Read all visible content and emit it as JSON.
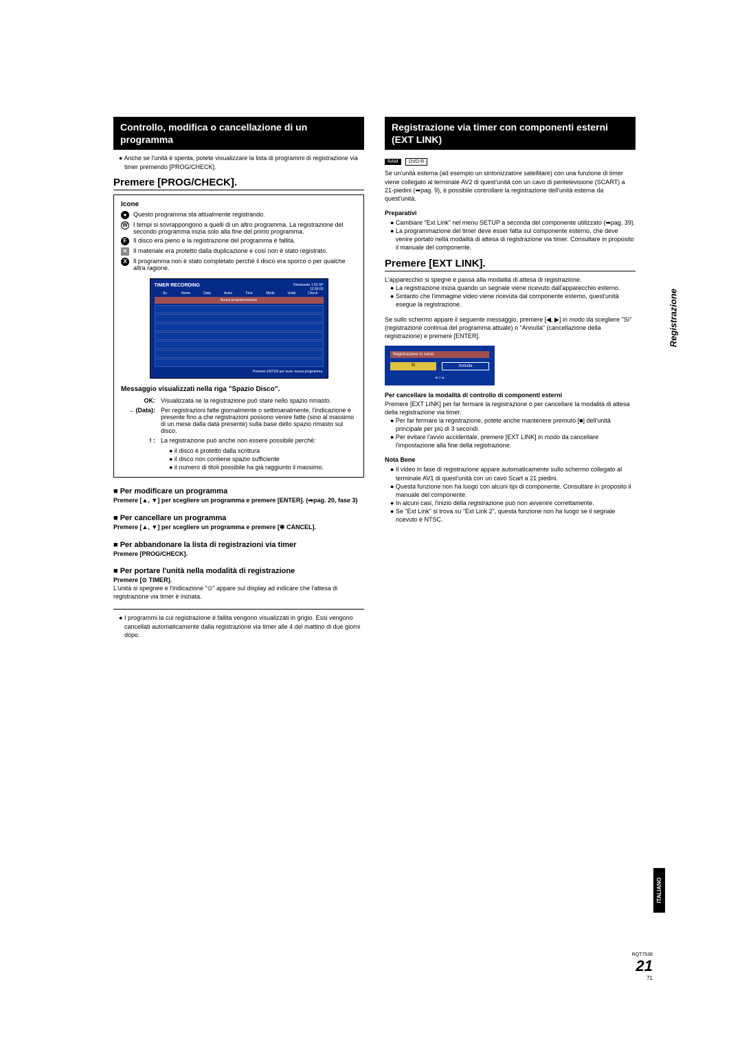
{
  "left": {
    "header": "Controllo, modifica o cancellazione di un programma",
    "intro_bullet": "Anche se l'unità è spenta, potete visualizzare la lista di programmi di registrazione via timer premendo [PROG/CHECK].",
    "subhead": "Premere [PROG/CHECK].",
    "icons_title": "Icone",
    "icons": [
      {
        "glyph": "●",
        "cls": "circle-icon",
        "text": "Questo programma sta attualmente registrando."
      },
      {
        "glyph": "W",
        "cls": "outline-icon",
        "text": "I tempi si sovrappongono a quelli di un altro programma. La registrazione del secondo programma inizia solo alla fine del primo programma."
      },
      {
        "glyph": "F",
        "cls": "circle-icon",
        "text": "Il disco era pieno e la registrazione del programma è fallita."
      },
      {
        "glyph": "✕",
        "cls": "square-icon",
        "text": "Il materiale era protetto dalla duplicazione e così non è stato registrato."
      },
      {
        "glyph": "X",
        "cls": "circle-icon",
        "text": "Il programma non è stato completato perché il disco era sporco o per qualche altra ragione."
      }
    ],
    "timer": {
      "title": "TIMER RECORDING",
      "remain": "Rimanente 1:53 SP",
      "time": "12:56:00",
      "headers": [
        "Su",
        "Nome",
        "Data",
        "Avvio",
        "Fine",
        "Mode",
        "Unità",
        "Check"
      ],
      "newprog": "Nuova programmazione",
      "footer_left": "",
      "footer_right": "Premere ENTER per nuov. nuova programma."
    },
    "msg_title": "Messaggio visualizzati nella riga \"Spazio Disco\".",
    "msgs": [
      {
        "label": "OK:",
        "desc": "Visualizzata se la registrazione può stare nello spazio rimasto."
      },
      {
        "label": "→ (Data):",
        "desc": "Per registrazioni fatte giornalmente o settimanalmente, l'indicazione è presente fino a che registrazioni possono venire fatte (sino al massimo di un mese dalla data presente) sulla base dello spazio rimasto sul disco."
      },
      {
        "label": "! :",
        "desc": "La registrazione può anche non essere possibile perché:"
      }
    ],
    "msg_sub": [
      "il disco è protetto dalla scrittura",
      "il disco non contiene spazio sufficiente",
      "il numero di titoli possibile ha già raggiunto il massimo."
    ],
    "blocks": [
      {
        "title": "Per modificare un programma",
        "instr": "Premere [▲, ▼] per scegliere un programma e premere [ENTER]. (➡pag. 20, fase 3)"
      },
      {
        "title": "Per cancellare un programma",
        "instr": "Premere [▲, ▼] per scegliere un programma e premere [✱ CANCEL]."
      },
      {
        "title": "Per abbandonare la lista di registrazioni via timer",
        "instr": "Premere [PROG/CHECK]."
      },
      {
        "title": "Per portare l'unità nella modalità di registrazione",
        "instr": "Premere [⊙ TIMER]."
      }
    ],
    "unit_off": "L'unità si spegnee e l'indicazione \"⊙\" appare sul display ad indicare che l'attesa di registrazione via timer è iniziata.",
    "foot_bullet": "I programmi la cui registrazione è fallita vengono visualizzati in grigio. Essi vengono cancellati automaticamente dalla registrazione via timer alle 4 del mattino di due giorni dopo."
  },
  "right": {
    "header": "Registrazione via timer con componenti esterni (EXT LINK)",
    "badges": [
      "RAM",
      "DVD-R"
    ],
    "intro": "Se un'unità esterna (ad esempio un sintonizzatore satellitare) con una funzione di timer viene collegato al terminale AV2 di quest'unità con un cavo di peritelevisione (SCART) a 21-piedini (➡pag. 9), è possibile controllare la registrazione dell'unità esterna da quest'unità.",
    "prep_title": "Preparativi",
    "prep": [
      "Cambiare \"Ext Link\" nel menu SETUP a seconda del componente utilizzato (➡pag. 39).",
      "La programmazione del timer deve esser fatta sul componente esterno, che deve venire portato nella modalità di attesa di registrazione via timer. Consultare in proposito il manuale del componente."
    ],
    "subhead": "Premere [EXT LINK].",
    "after": "L'apparecchio si spegne e passa alla modalità di attesa di registrazione.",
    "after_bullets": [
      "La registrazione inizia quando un segnale viene ricevuto dall'apparecchio esterno.",
      "Sintanto che l'immagine video viene ricevuta dal componente esterno, quest'unità esegue la registrazione."
    ],
    "screen_msg": "Se sullo schermo appare il seguente messaggio, premere [◀, ▶] in modo da scegliere \"Sì\" (registrazione continua del programma attuale) o \"Annulla\" (cancellazione della registrazione) e premere [ENTER].",
    "dialog": {
      "title": "Registrazione in corso.",
      "yes": "Sì",
      "cancel": "Annulla"
    },
    "cancel_title": "Per cancellare la modalità di controllo di componenti esterni",
    "cancel_text": "Premere [EXT LINK] per far fermare la registrazione o per cancellare la modalità di attesa della registrazione via timer.",
    "cancel_bullets": [
      "Per far fermare la registrazione, potete anche mantenere premuto [■] dell'unità principale per più di 3 secondi.",
      "Per evitare l'avvio accidentale, premere [EXT LINK] in modo da cancellare l'impostazione alla fine della registrazione."
    ],
    "nota_title": "Nota Bene",
    "nota": [
      "Il video in fase di registrazione appare automaticamente sullo schermo collegato al terminale AV1 di quest'unità con un cavo Scart a 21 piedini.",
      "Questa funzione non ha luogo con alcuni tipi di componente. Consultare in proposito il manuale del componente.",
      "In alcuni casi, l'inizio della registrazione può non avvenire correttamente.",
      "Se \"Ext Link\" si trova su \"Ext Link 2\", questa funzione non ha luogo se il segnale ricevuto è NTSC."
    ]
  },
  "side": {
    "tab": "Registrazione",
    "lang": "ITALIANO",
    "ref": "RQT7536",
    "page_big": "21",
    "page_small": "71"
  }
}
